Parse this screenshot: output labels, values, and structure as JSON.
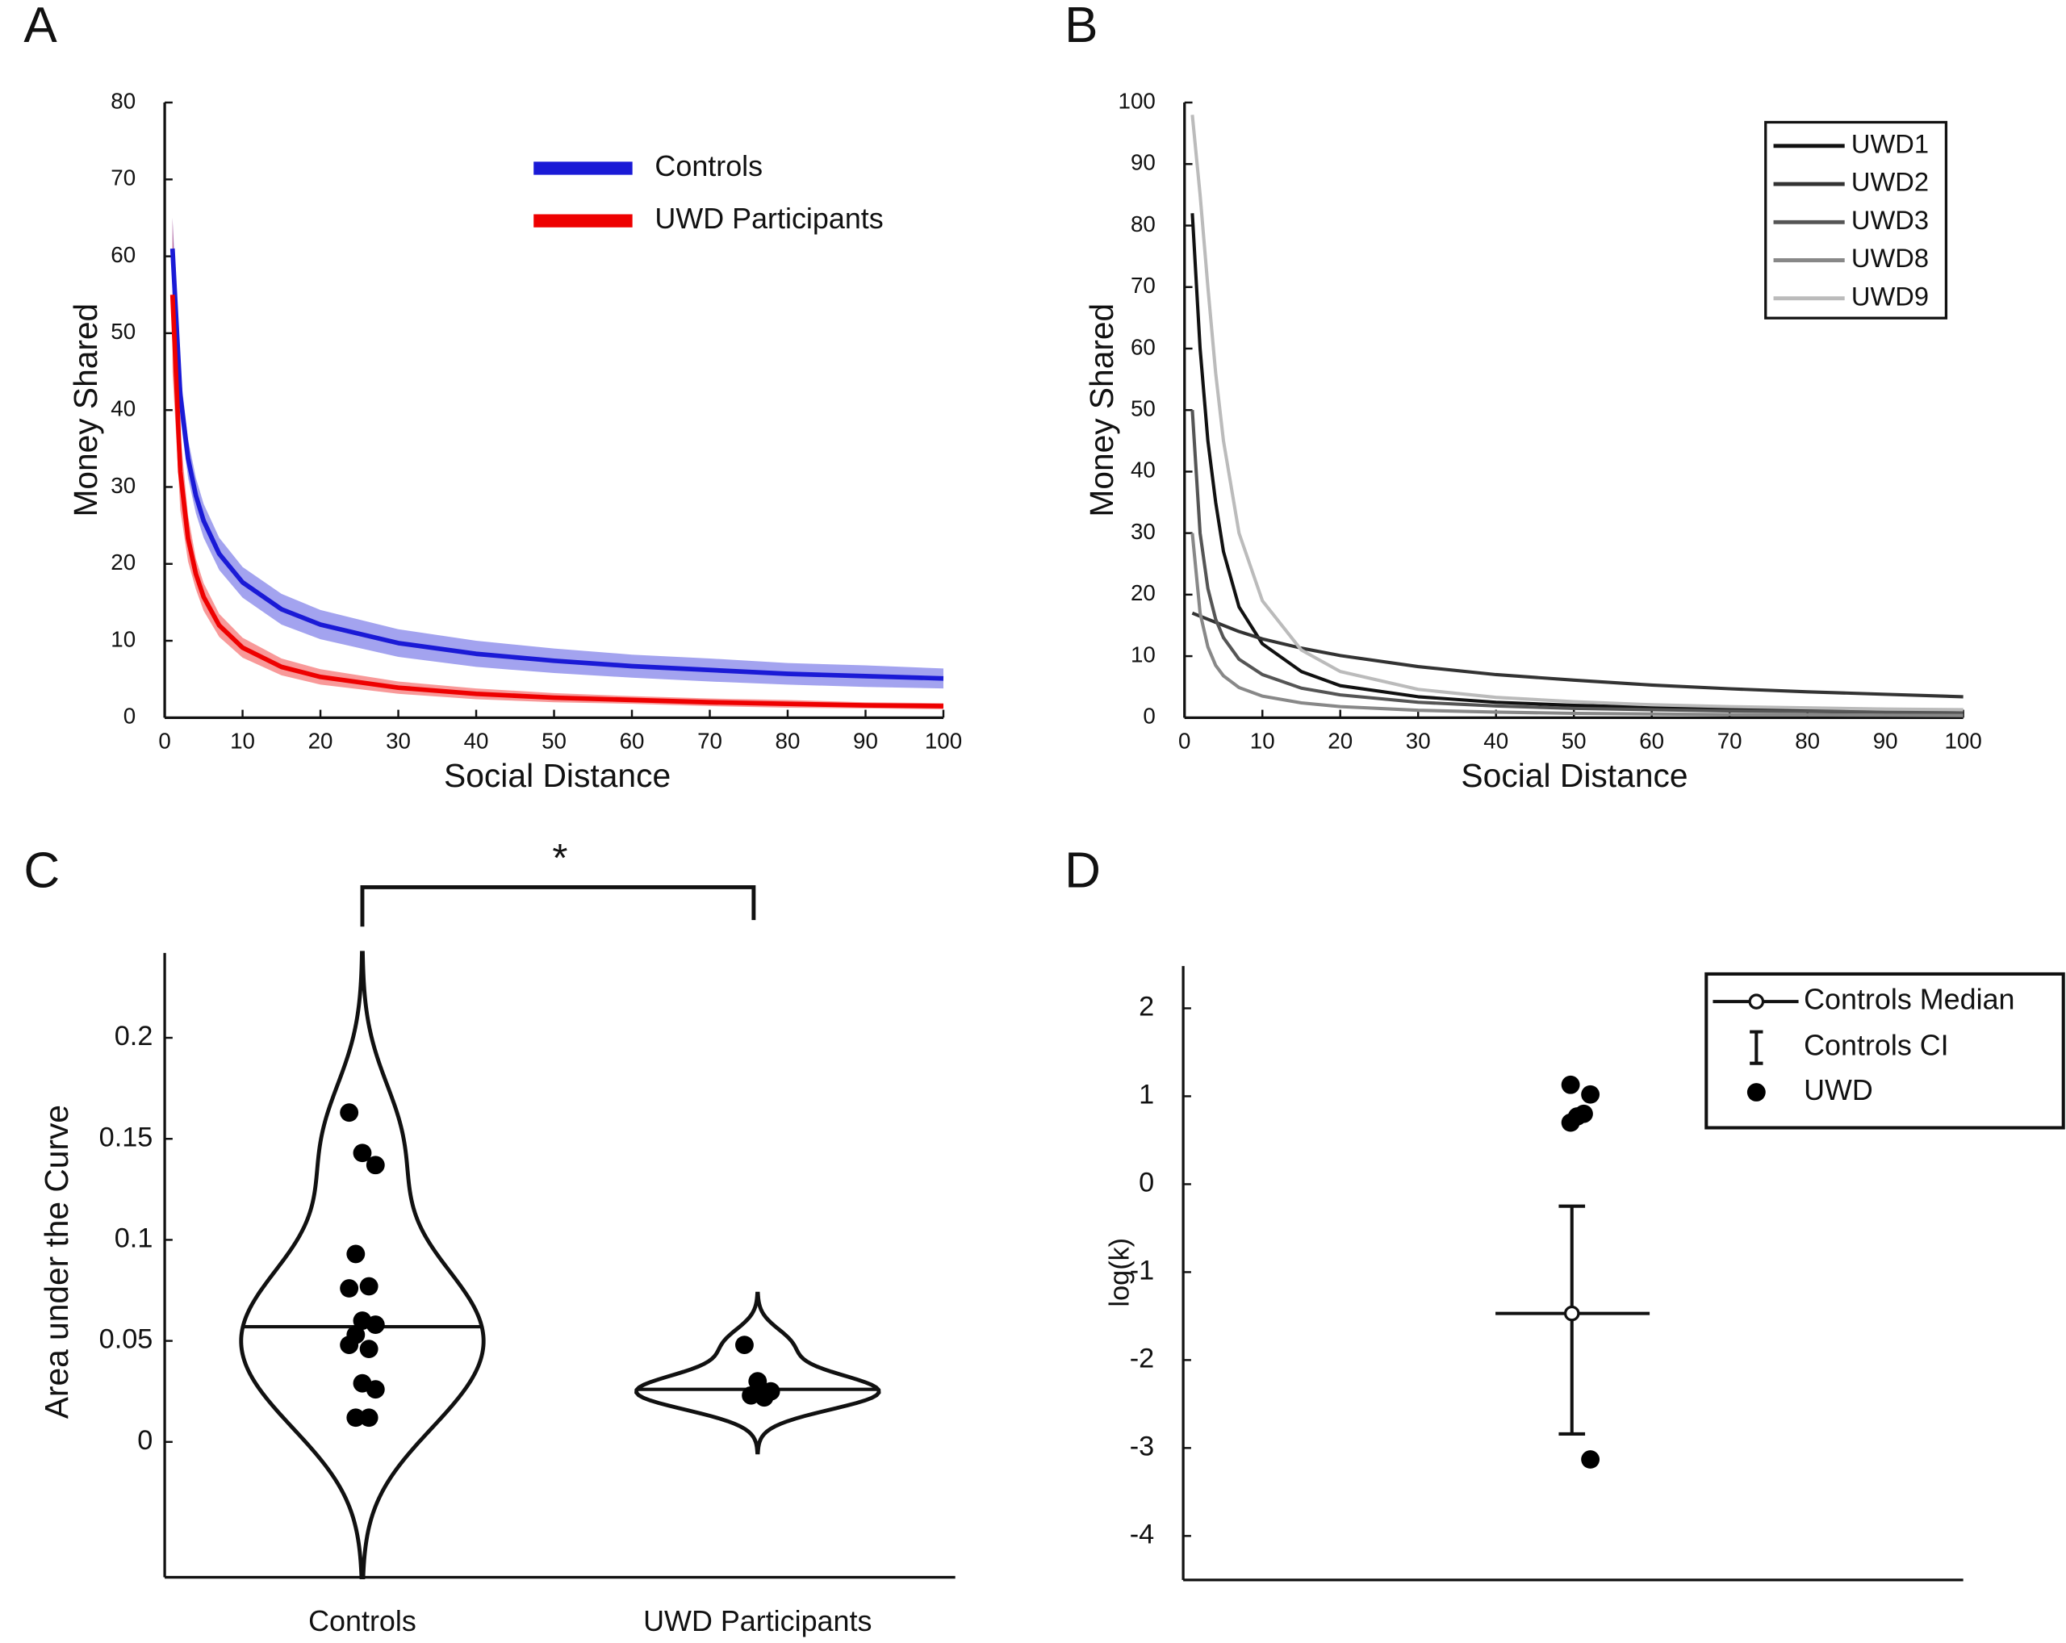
{
  "chart_data": [
    {
      "type": "line",
      "panel": "A",
      "xlabel": "Social Distance",
      "ylabel": "Money Shared",
      "x": [
        1,
        2,
        3,
        4,
        5,
        7,
        10,
        15,
        20,
        30,
        40,
        50,
        60,
        70,
        80,
        90,
        100
      ],
      "xlim": [
        0,
        100
      ],
      "xticks": [
        0,
        10,
        20,
        30,
        40,
        50,
        60,
        70,
        80,
        90,
        100
      ],
      "ylim": [
        0,
        80
      ],
      "yticks": [
        0,
        10,
        20,
        30,
        40,
        50,
        60,
        70,
        80
      ],
      "legend": "upper right",
      "series": [
        {
          "name": "Controls",
          "color": "#1a1ad6",
          "values": [
            61,
            42,
            33.7,
            28.9,
            25.6,
            21.3,
            17.6,
            14.1,
            12.1,
            9.7,
            8.3,
            7.4,
            6.7,
            6.2,
            5.7,
            5.4,
            5.1
          ],
          "upper": [
            65,
            45,
            36.2,
            31.2,
            27.8,
            23.4,
            19.6,
            16.1,
            14,
            11.5,
            10,
            9,
            8.2,
            7.7,
            7.1,
            6.8,
            6.4
          ],
          "lower": [
            57,
            39,
            31.2,
            26.6,
            23.4,
            19.2,
            15.6,
            12.1,
            10.2,
            7.9,
            6.6,
            5.8,
            5.2,
            4.7,
            4.3,
            4,
            3.8
          ]
        },
        {
          "name": "UWD Participants",
          "color": "#ee0000",
          "values": [
            55,
            32,
            23.3,
            18.7,
            15.7,
            12,
            9.1,
            6.6,
            5.3,
            3.9,
            3.1,
            2.6,
            2.3,
            2,
            1.8,
            1.6,
            1.5
          ],
          "upper": [
            65,
            37,
            26.3,
            20.7,
            17.5,
            13.5,
            10.4,
            7.7,
            6.3,
            4.7,
            3.8,
            3.2,
            2.8,
            2.5,
            2.3,
            2,
            1.9
          ],
          "lower": [
            45,
            27,
            20.3,
            16.7,
            13.9,
            10.5,
            7.8,
            5.5,
            4.3,
            3.1,
            2.4,
            2,
            1.8,
            1.5,
            1.3,
            1.2,
            1.1
          ]
        }
      ]
    },
    {
      "type": "line",
      "panel": "B",
      "xlabel": "Social Distance",
      "ylabel": "Money Shared",
      "x": [
        1,
        2,
        3,
        4,
        5,
        7,
        10,
        15,
        20,
        30,
        40,
        50,
        60,
        70,
        80,
        90,
        100
      ],
      "xlim": [
        0,
        100
      ],
      "xticks": [
        0,
        10,
        20,
        30,
        40,
        50,
        60,
        70,
        80,
        90,
        100
      ],
      "ylim": [
        0,
        100
      ],
      "yticks": [
        0,
        10,
        20,
        30,
        40,
        50,
        60,
        70,
        80,
        90,
        100
      ],
      "legend": "upper right boxed",
      "series": [
        {
          "name": "UWD1",
          "color": "#111111",
          "values": [
            82,
            60,
            45,
            35,
            27,
            18,
            12,
            7.5,
            5.2,
            3.4,
            2.5,
            2,
            1.7,
            1.5,
            1.3,
            1.2,
            1
          ]
        },
        {
          "name": "UWD2",
          "color": "#333333",
          "values": [
            17,
            16.5,
            16,
            15.5,
            15,
            14,
            12.8,
            11.3,
            10.1,
            8.3,
            7,
            6.1,
            5.3,
            4.7,
            4.2,
            3.8,
            3.4
          ]
        },
        {
          "name": "UWD3",
          "color": "#555555",
          "values": [
            50,
            30,
            21,
            16,
            13,
            9.5,
            7,
            4.8,
            3.7,
            2.5,
            1.9,
            1.5,
            1.3,
            1.1,
            1,
            0.9,
            0.8
          ]
        },
        {
          "name": "UWD8",
          "color": "#888888",
          "values": [
            30,
            17,
            11.5,
            8.5,
            6.8,
            4.9,
            3.5,
            2.4,
            1.8,
            1.2,
            0.9,
            0.7,
            0.6,
            0.5,
            0.45,
            0.4,
            0.35
          ]
        },
        {
          "name": "UWD9",
          "color": "#bbbbbb",
          "values": [
            98,
            85,
            70,
            56,
            45,
            30,
            19,
            11,
            7.5,
            4.6,
            3.3,
            2.6,
            2.1,
            1.8,
            1.6,
            1.4,
            1.3
          ]
        }
      ]
    },
    {
      "type": "violin",
      "panel": "C",
      "ylabel": "Area under the Curve",
      "annotation": "*",
      "categories": [
        "Controls",
        "UWD Participants"
      ],
      "ylim": [
        -0.067,
        0.242
      ],
      "yticks": [
        0,
        0.05,
        0.1,
        0.15,
        0.2
      ],
      "groups": [
        {
          "values": [
            0.163,
            0.143,
            0.137,
            0.093,
            0.077,
            0.076,
            0.06,
            0.058,
            0.053,
            0.046,
            0.048,
            0.029,
            0.026,
            0.012,
            0.012
          ],
          "median": 0.057
        },
        {
          "values": [
            0.048,
            0.03,
            0.025,
            0.023,
            0.022
          ],
          "median": 0.026
        }
      ]
    },
    {
      "type": "errorbar",
      "panel": "D",
      "ylabel": "log(k)",
      "legend": "upper right boxed",
      "ylim": [
        -4.5,
        2.48
      ],
      "yticks": [
        -4,
        -3,
        -2,
        -1,
        0,
        1,
        2
      ],
      "series": [
        {
          "name": "Controls Median",
          "values": [
            -1.47
          ]
        },
        {
          "name": "Controls CI",
          "values": [
            -2.84,
            -0.25
          ]
        },
        {
          "name": "UWD",
          "values": [
            1.13,
            1.02,
            0.8,
            0.77,
            0.7,
            -3.13
          ]
        }
      ]
    }
  ]
}
